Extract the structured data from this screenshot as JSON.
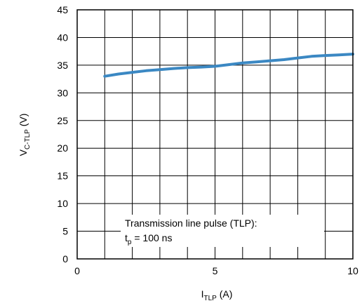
{
  "chart_data": {
    "type": "line",
    "xlim": [
      0,
      10
    ],
    "ylim": [
      0,
      45
    ],
    "x_ticks": [
      0,
      5,
      10
    ],
    "y_ticks": [
      0,
      5,
      10,
      15,
      20,
      25,
      30,
      35,
      40,
      45
    ],
    "grid": true,
    "x_minor_grid_step": 1,
    "y_grid_step": 5,
    "xlabel": {
      "main": "I",
      "sub": "TLP",
      "unit": " (A)"
    },
    "ylabel": {
      "main": "V",
      "sub": "C-TLP",
      "unit": " (V)"
    },
    "series": [
      {
        "color": "#3b88c3",
        "x": [
          1,
          1.5,
          2,
          2.5,
          3,
          3.5,
          4,
          4.5,
          5,
          5.5,
          6,
          6.5,
          7,
          7.5,
          8,
          8.5,
          9,
          9.5,
          10
        ],
        "y": [
          33.0,
          33.4,
          33.7,
          34.0,
          34.2,
          34.4,
          34.55,
          34.65,
          34.8,
          35.1,
          35.4,
          35.6,
          35.8,
          36.0,
          36.3,
          36.6,
          36.75,
          36.85,
          37.0
        ]
      }
    ],
    "annotation": {
      "line1": "Transmission line pulse (TLP):",
      "line2_main": "t",
      "line2_sub": "p",
      "line2_rest": " = 100 ns"
    }
  }
}
